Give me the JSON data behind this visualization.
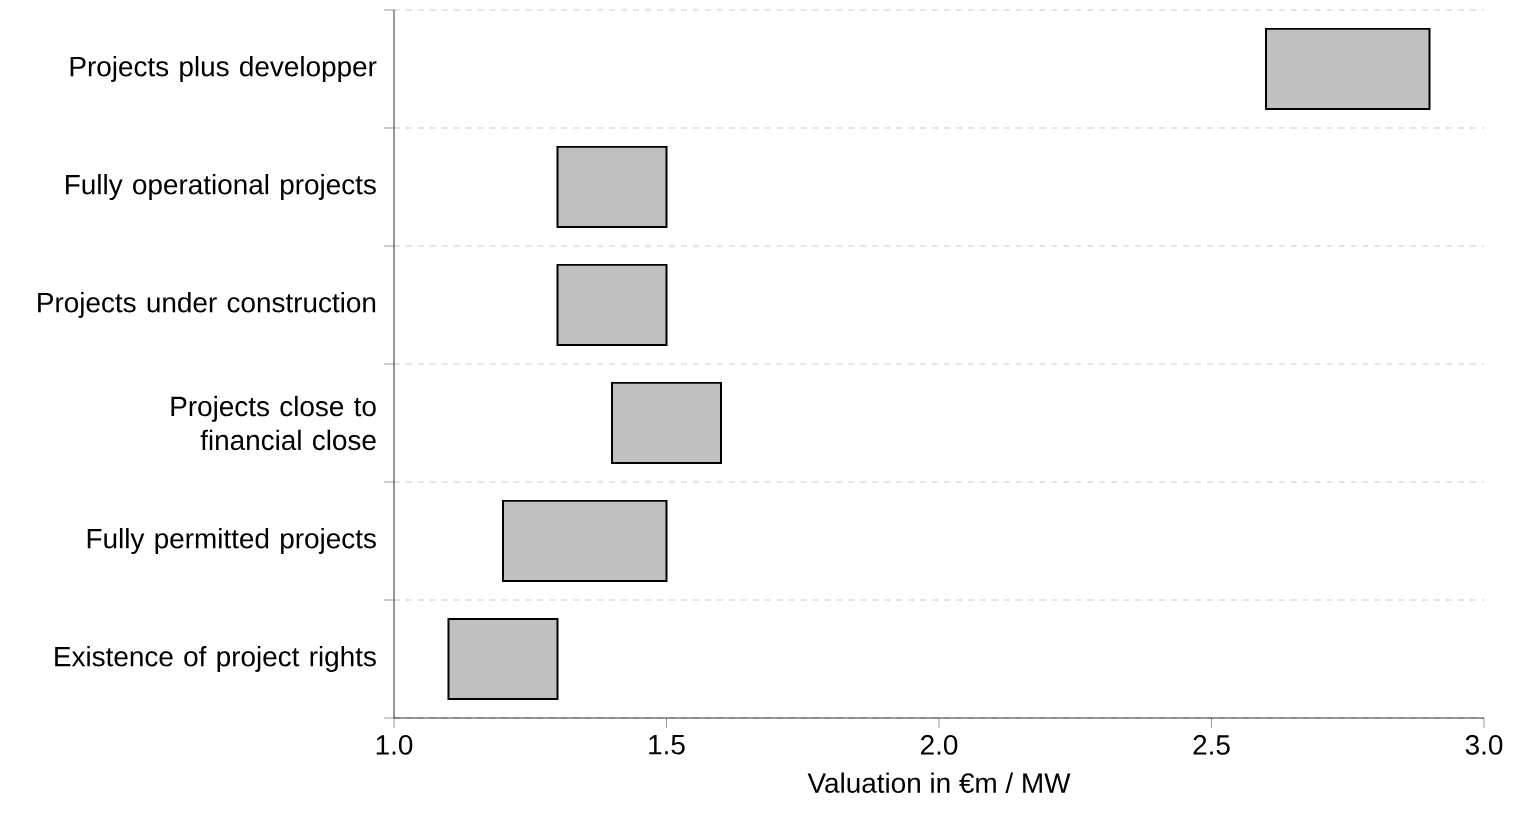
{
  "chart_data": {
    "type": "bar",
    "orientation": "horizontal",
    "xlabel": "Valuation in €m / MW",
    "categories": [
      "Projects plus developper",
      "Fully operational projects",
      "Projects under construction",
      "Projects close to financial close",
      "Fully permitted projects",
      "Existence of project rights"
    ],
    "base": [
      2.6,
      1.3,
      1.3,
      1.4,
      1.2,
      1.1
    ],
    "values": [
      0.3,
      0.2,
      0.2,
      0.2,
      0.3,
      0.2
    ],
    "color": "#c0c0c0",
    "xlim": [
      1,
      3
    ],
    "xticks": [
      {
        "value": 1,
        "label": "1.0"
      },
      {
        "value": 1.5,
        "label": "1.5"
      },
      {
        "value": 2,
        "label": "2.0"
      },
      {
        "value": 2.5,
        "label": "2.5"
      },
      {
        "value": 3,
        "label": "3.0"
      }
    ],
    "grid": "y"
  }
}
